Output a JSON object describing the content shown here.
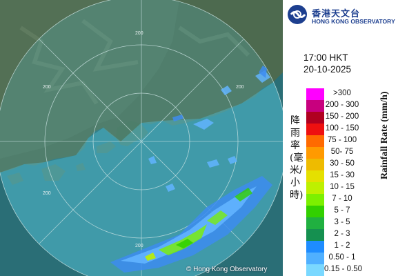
{
  "agency": {
    "name_cn": "香港天文台",
    "name_en": "HONG KONG OBSERVATORY",
    "brand_color": "#1d3f8f"
  },
  "timestamp": {
    "time": "17:00 HKT",
    "date": "20-10-2025"
  },
  "legend": {
    "label_cn": "降雨率(毫米/小時)",
    "label_en": "Rainfall Rate (mm/h)",
    "items": [
      {
        "label": ">300",
        "color": "#ff00ff"
      },
      {
        "label": "200 - 300",
        "color": "#c8007e"
      },
      {
        "label": "150 - 200",
        "color": "#b00020"
      },
      {
        "label": "100 - 150",
        "color": "#ee1010"
      },
      {
        "label": "75 - 100",
        "color": "#ff6a00"
      },
      {
        "label": "50- 75",
        "color": "#ff9a00"
      },
      {
        "label": "30 - 50",
        "color": "#eebb00"
      },
      {
        "label": "15 - 30",
        "color": "#e5e000"
      },
      {
        "label": "10 - 15",
        "color": "#bef000"
      },
      {
        "label": "7 - 10",
        "color": "#7cf000"
      },
      {
        "label": "5 - 7",
        "color": "#32d000"
      },
      {
        "label": "3 - 5",
        "color": "#20b040"
      },
      {
        "label": "2 - 3",
        "color": "#159050"
      },
      {
        "label": "1 - 2",
        "color": "#1e8cff"
      },
      {
        "label": "0.50 - 1",
        "color": "#50b0ff"
      },
      {
        "label": "0.15 - 0.50",
        "color": "#7ad8ff"
      }
    ]
  },
  "range_ring_labels": [
    "200",
    "200",
    "200",
    "200",
    "200"
  ],
  "copyright": "© Hong Kong Observatory",
  "colors": {
    "sea": "#2d7f86",
    "land": "#4d6a4f"
  }
}
